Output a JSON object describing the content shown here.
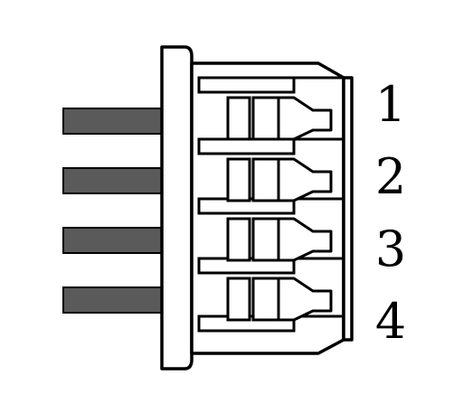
{
  "diagram": {
    "pins": [
      {
        "label": "1"
      },
      {
        "label": "2"
      },
      {
        "label": "3"
      },
      {
        "label": "4"
      }
    ],
    "colors": {
      "background": "#ffffff",
      "outline": "#000000",
      "pin_lead": "#5a5a5a"
    }
  }
}
